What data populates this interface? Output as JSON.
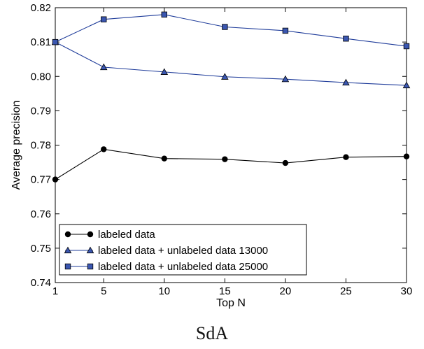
{
  "caption": "SdA",
  "chart_data": {
    "type": "line",
    "xlabel": "Top N",
    "ylabel": "Average precision",
    "x": [
      1,
      5,
      10,
      15,
      20,
      25,
      30
    ],
    "xlim": [
      1,
      30
    ],
    "ylim": [
      0.74,
      0.82
    ],
    "x_ticks": [
      "1",
      "5",
      "10",
      "15",
      "20",
      "25",
      "30"
    ],
    "y_ticks": [
      "0.74",
      "0.75",
      "0.76",
      "0.77",
      "0.78",
      "0.79",
      "0.80",
      "0.81",
      "0.82"
    ],
    "grid": false,
    "legend_position": "lower-left",
    "series": [
      {
        "name": "labeled data",
        "color": "#000000",
        "marker": "circle",
        "values": [
          0.77,
          0.7788,
          0.7761,
          0.7759,
          0.7748,
          0.7765,
          0.7767
        ]
      },
      {
        "name": "labeled data + unlabeled data 13000",
        "color": "#1f3c9a",
        "marker": "triangle",
        "values": [
          0.81,
          0.8027,
          0.8013,
          0.7999,
          0.7992,
          0.7982,
          0.7974
        ]
      },
      {
        "name": "labeled data + unlabeled data 25000",
        "color": "#1f3c9a",
        "marker": "square",
        "values": [
          0.81,
          0.8166,
          0.818,
          0.8144,
          0.8133,
          0.811,
          0.8088
        ]
      }
    ]
  }
}
